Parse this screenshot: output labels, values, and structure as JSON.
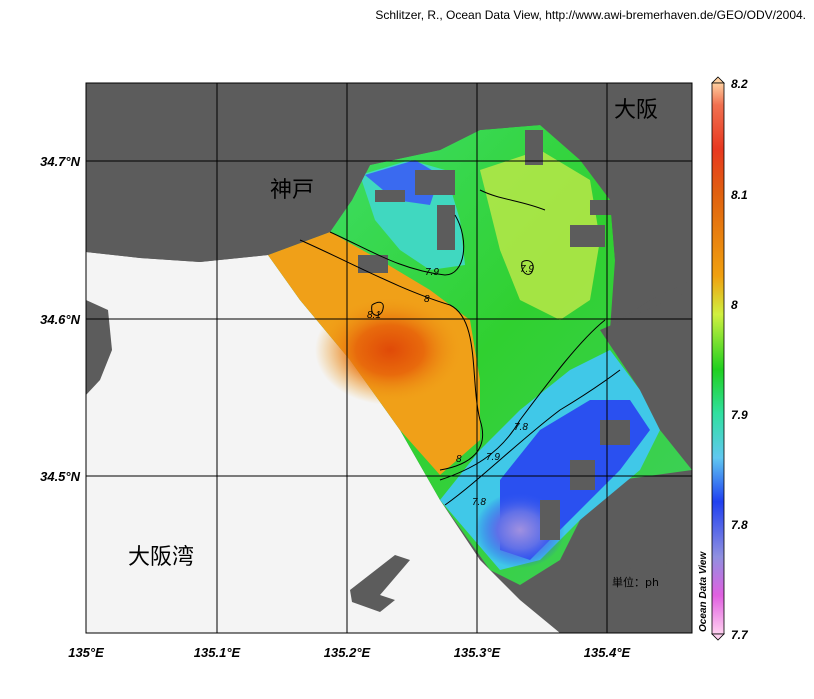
{
  "credit": "Schlitzer, R., Ocean Data View, http://www.awi-bremerhaven.de/GEO/ODV/2004.",
  "map": {
    "lon_ticks": [
      "135°E",
      "135.1°E",
      "135.2°E",
      "135.3°E",
      "135.4°E"
    ],
    "lat_ticks": [
      "34.7°N",
      "34.6°N",
      "34.5°N"
    ],
    "place_labels": {
      "kobe": "神戸",
      "osaka": "大阪",
      "osaka_bay": "大阪湾"
    },
    "contour_labels": [
      "7.9",
      "8",
      "8.1",
      "7.9",
      "8",
      "7.9",
      "7.8",
      "7.8"
    ],
    "unit_label": "単位：ph",
    "colors": {
      "land": "#5c5c5c",
      "no_data": "#f4f4f4",
      "grid": "#000000"
    }
  },
  "colorbar": {
    "ticks": [
      "8.2",
      "8.1",
      "8",
      "7.9",
      "7.8",
      "7.7"
    ],
    "title": "Ocean Data View",
    "stops": [
      "#ffd0a0",
      "#e83820",
      "#e06010",
      "#f0a010",
      "#d0f040",
      "#20d020",
      "#40e8b0",
      "#60c8f0",
      "#2040f0",
      "#9090e0",
      "#f050e0",
      "#ffd0f0"
    ]
  }
}
